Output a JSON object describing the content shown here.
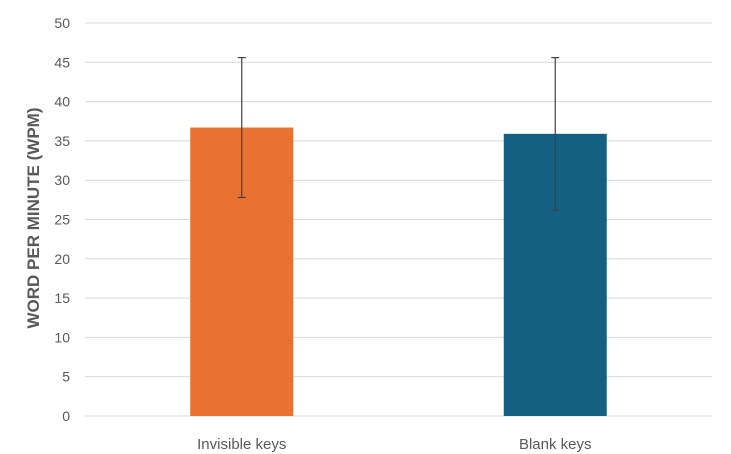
{
  "chart_data": {
    "type": "bar",
    "title": "",
    "xlabel": "",
    "ylabel": "WORD PER MINUTE (WPM)",
    "ylim": [
      0,
      50
    ],
    "yticks": [
      0,
      5,
      10,
      15,
      20,
      25,
      30,
      35,
      40,
      45,
      50
    ],
    "grid": true,
    "categories": [
      "Invisible keys",
      "Blank keys"
    ],
    "values": [
      36.7,
      35.9
    ],
    "error": [
      8.9,
      9.7
    ],
    "colors": [
      "#E97132",
      "#156082"
    ]
  }
}
